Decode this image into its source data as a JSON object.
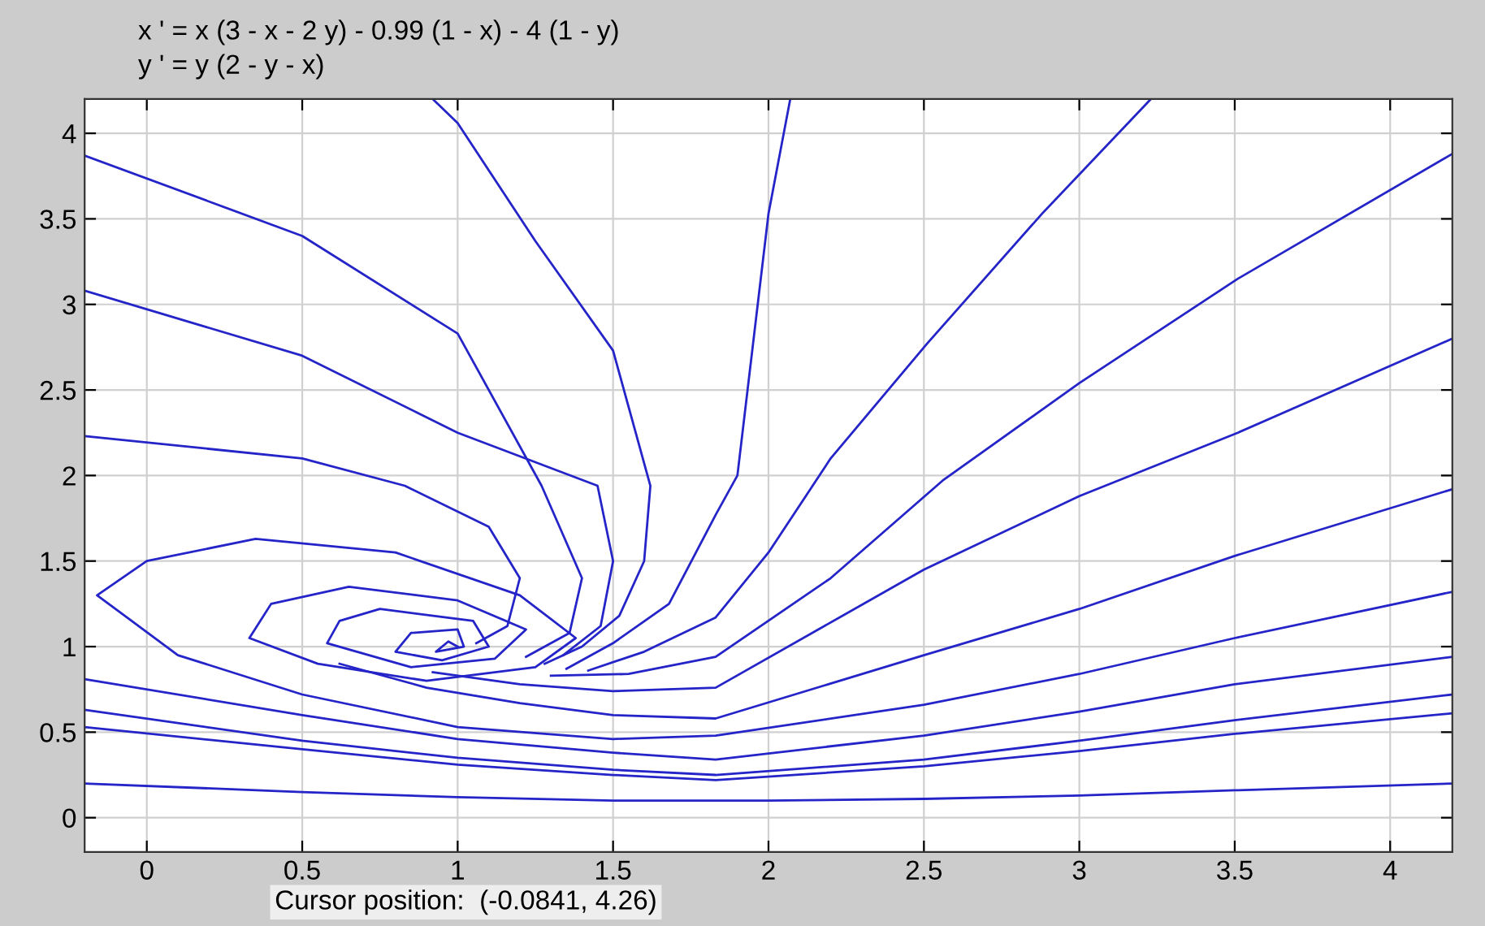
{
  "chart_data": {
    "type": "line",
    "title": "x ' = x (3 - x - 2 y) - 0.99 (1 - x) - 4 (1 - y)",
    "subtitle": "y ' = y (2 - y - x)",
    "annotations": [
      "Cursor position:  (-0.0841, 4.26)"
    ],
    "xlim": [
      -0.2,
      4.2
    ],
    "ylim": [
      -0.2,
      4.2
    ],
    "xticks": [
      0,
      0.5,
      1,
      1.5,
      2,
      2.5,
      3,
      3.5,
      4
    ],
    "yticks": [
      0,
      0.5,
      1,
      1.5,
      2,
      2.5,
      3,
      3.5,
      4
    ],
    "grid": true,
    "line_style": "solid",
    "marker": "none",
    "series": [
      {
        "color": "#2424c8",
        "x": [
          0.92,
          1.0,
          1.25,
          1.5,
          1.62,
          1.6,
          1.52,
          1.4,
          1.28
        ],
        "values": [
          4.2,
          4.06,
          3.37,
          2.73,
          1.94,
          1.5,
          1.18,
          1.0,
          0.9
        ]
      },
      {
        "color": "#2424c8",
        "x": [
          2.07,
          2.0,
          1.9,
          1.83,
          1.68,
          1.5,
          1.35
        ],
        "values": [
          4.2,
          3.53,
          2.0,
          1.77,
          1.25,
          1.02,
          0.87
        ]
      },
      {
        "color": "#2424c8",
        "x": [
          3.23,
          2.88,
          2.51,
          2.2,
          2.0,
          1.83,
          1.6,
          1.42
        ],
        "values": [
          4.2,
          3.53,
          2.77,
          2.1,
          1.55,
          1.17,
          0.97,
          0.86
        ]
      },
      {
        "color": "#2424c8",
        "x": [
          4.2,
          3.51,
          3.0,
          2.56,
          2.2,
          1.83,
          1.55,
          1.3
        ],
        "values": [
          3.88,
          3.15,
          2.54,
          1.97,
          1.4,
          0.94,
          0.84,
          0.83
        ]
      },
      {
        "color": "#2424c8",
        "x": [
          4.2,
          3.51,
          3.0,
          2.5,
          1.83,
          1.5,
          1.2,
          0.92
        ],
        "values": [
          2.8,
          2.25,
          1.88,
          1.45,
          0.76,
          0.74,
          0.78,
          0.85
        ]
      },
      {
        "color": "#2424c8",
        "x": [
          4.2,
          3.5,
          3.0,
          2.5,
          1.83,
          1.5,
          1.2,
          0.9,
          0.62
        ],
        "values": [
          1.92,
          1.53,
          1.22,
          0.95,
          0.58,
          0.6,
          0.67,
          0.76,
          0.9
        ]
      },
      {
        "color": "#2424c8",
        "x": [
          4.2,
          3.5,
          3.0,
          2.5,
          1.83,
          1.5,
          1.0,
          0.5,
          0.1,
          -0.16,
          0.0,
          0.35,
          0.8,
          1.2,
          1.38,
          1.25,
          0.9,
          0.55,
          0.33,
          0.4,
          0.65,
          1.0,
          1.22,
          1.12,
          0.85,
          0.58,
          0.62,
          0.75,
          1.05,
          1.1,
          0.95,
          0.8,
          0.85,
          1.0,
          1.02,
          0.93,
          0.97,
          1.0
        ],
        "values": [
          1.32,
          1.05,
          0.84,
          0.66,
          0.48,
          0.46,
          0.53,
          0.72,
          0.95,
          1.3,
          1.5,
          1.63,
          1.55,
          1.3,
          1.05,
          0.88,
          0.8,
          0.9,
          1.05,
          1.25,
          1.35,
          1.27,
          1.1,
          0.93,
          0.88,
          1.02,
          1.15,
          1.22,
          1.15,
          1.0,
          0.92,
          0.97,
          1.08,
          1.1,
          1.0,
          0.97,
          1.03,
          1.0
        ]
      },
      {
        "color": "#2424c8",
        "x": [
          -0.2,
          0.5,
          1.0,
          1.5,
          1.83,
          2.5,
          3.0,
          3.5,
          4.2
        ],
        "values": [
          0.81,
          0.6,
          0.46,
          0.38,
          0.34,
          0.48,
          0.62,
          0.78,
          0.94
        ]
      },
      {
        "color": "#2424c8",
        "x": [
          -0.2,
          0.5,
          1.0,
          1.5,
          1.83,
          2.5,
          3.0,
          3.5,
          4.2
        ],
        "values": [
          0.63,
          0.45,
          0.35,
          0.28,
          0.25,
          0.34,
          0.45,
          0.57,
          0.72
        ]
      },
      {
        "color": "#2424c8",
        "x": [
          -0.2,
          0.5,
          1.0,
          1.5,
          1.83,
          2.5,
          3.0,
          3.5,
          4.2
        ],
        "values": [
          0.53,
          0.4,
          0.31,
          0.25,
          0.22,
          0.3,
          0.39,
          0.49,
          0.61
        ]
      },
      {
        "color": "#2424c8",
        "x": [
          -0.2,
          0.5,
          1.0,
          1.5,
          2.0,
          2.5,
          3.0,
          3.5,
          4.2
        ],
        "values": [
          0.2,
          0.15,
          0.12,
          0.1,
          0.1,
          0.11,
          0.13,
          0.16,
          0.2
        ]
      },
      {
        "color": "#2424c8",
        "x": [
          -0.2,
          0.5,
          1.0,
          1.27,
          1.4,
          1.36,
          1.22
        ],
        "values": [
          3.87,
          3.4,
          2.83,
          1.94,
          1.4,
          1.08,
          0.94
        ]
      },
      {
        "color": "#2424c8",
        "x": [
          -0.2,
          0.5,
          1.0,
          1.45,
          1.5,
          1.46,
          1.34
        ],
        "values": [
          3.08,
          2.7,
          2.25,
          1.94,
          1.5,
          1.12,
          0.95
        ]
      },
      {
        "color": "#2424c8",
        "x": [
          -0.2,
          0.5,
          0.83,
          1.1,
          1.2,
          1.16,
          1.06
        ],
        "values": [
          2.23,
          2.1,
          1.94,
          1.7,
          1.4,
          1.12,
          1.02
        ]
      }
    ]
  }
}
